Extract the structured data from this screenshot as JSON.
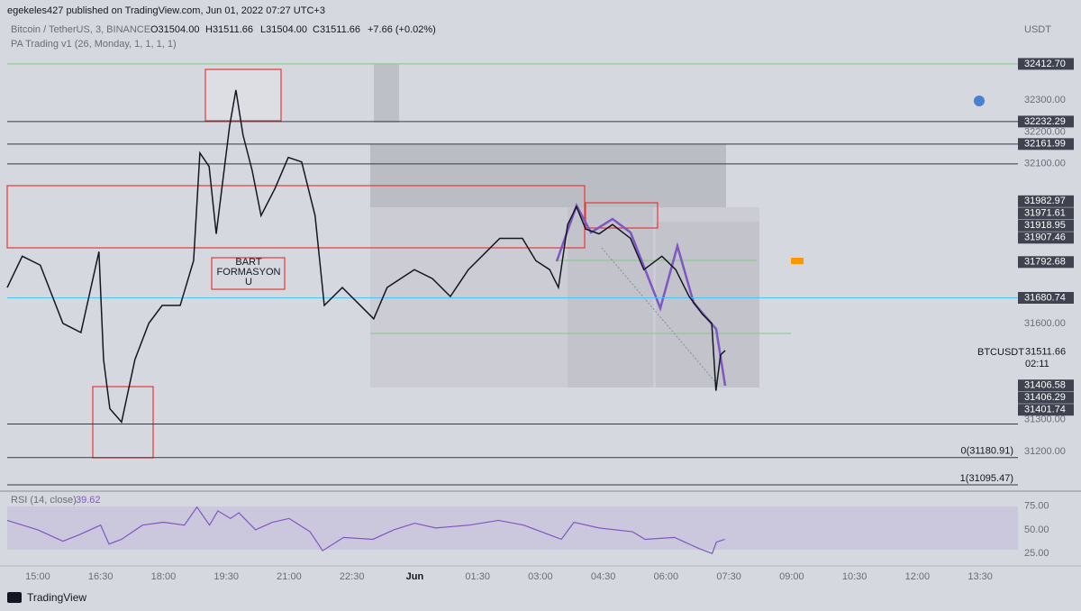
{
  "header": {
    "publisher": "egekeles427 published on TradingView.com, Jun 01, 2022 07:27 UTC+3"
  },
  "chart_data": {
    "type": "line",
    "symbol": "Bitcoin / TetherUS, 3, BINANCE",
    "ohlc": [
      "O31504.00",
      "H31511.66",
      "L31504.00",
      "C31511.66",
      "+7.66 (+0.02%)"
    ],
    "indicator": "PA Trading v1 (26, Monday, 1, 1, 1, 1)",
    "currency": "USDT",
    "x": [
      -0.73,
      -0.37,
      0.06,
      0.6,
      1.03,
      1.46,
      1.57,
      1.72,
      2.0,
      2.32,
      2.65,
      2.97,
      3.4,
      3.72,
      3.87,
      4.09,
      4.26,
      4.58,
      4.73,
      4.9,
      5.12,
      5.33,
      5.66,
      5.98,
      6.3,
      6.62,
      6.84,
      7.27,
      7.7,
      8.02,
      8.34,
      8.99,
      9.42,
      9.85,
      10.28,
      10.71,
      11.03,
      11.57,
      11.89,
      12.22,
      12.43,
      12.65,
      12.86,
      13.08,
      13.4,
      13.72,
      14.15,
      14.47,
      14.9,
      15.23,
      15.55,
      15.87,
      16.09,
      16.19,
      16.3,
      16.41
    ],
    "series": [
      {
        "name": "BTCUSDT",
        "color": "#131722",
        "values": [
          31713,
          31811,
          31783,
          31601,
          31572,
          31825,
          31488,
          31334,
          31292,
          31488,
          31601,
          31657,
          31657,
          31797,
          32134,
          32092,
          31881,
          32219,
          32331,
          32190,
          32078,
          31938,
          32022,
          32120,
          32106,
          31938,
          31657,
          31713,
          31657,
          31615,
          31713,
          31769,
          31741,
          31685,
          31769,
          31825,
          31867,
          31867,
          31797,
          31769,
          31713,
          31910,
          31966,
          31896,
          31881,
          31910,
          31867,
          31769,
          31811,
          31769,
          31685,
          31629,
          31601,
          31390,
          31502,
          31516
        ]
      }
    ],
    "last": {
      "value": 31511.66,
      "countdown": "02:11"
    },
    "xlim": [
      -0.73,
      23.4
    ],
    "xticks": [
      {
        "value": 0,
        "label": "15:00"
      },
      {
        "value": 1.5,
        "label": "16:30"
      },
      {
        "value": 3,
        "label": "18:00"
      },
      {
        "value": 4.5,
        "label": "19:30"
      },
      {
        "value": 6,
        "label": "21:00"
      },
      {
        "value": 7.5,
        "label": "22:30"
      },
      {
        "value": 9,
        "label": "Jun"
      },
      {
        "value": 10.5,
        "label": "01:30"
      },
      {
        "value": 12,
        "label": "03:00"
      },
      {
        "value": 13.5,
        "label": "04:30"
      },
      {
        "value": 15,
        "label": "06:00"
      },
      {
        "value": 16.5,
        "label": "07:30"
      },
      {
        "value": 18,
        "label": "09:00"
      },
      {
        "value": 19.5,
        "label": "10:30"
      },
      {
        "value": 21,
        "label": "12:00"
      },
      {
        "value": 22.5,
        "label": "13:30"
      }
    ],
    "ylim": [
      31090,
      32545
    ],
    "yticks": [
      {
        "value": 32300,
        "label": "32300.00"
      },
      {
        "value": 32200,
        "label": "32200.00"
      },
      {
        "value": 32100,
        "label": "32100.00"
      },
      {
        "value": 31600,
        "label": "31600.00"
      },
      {
        "value": 31300,
        "label": "31300.00"
      },
      {
        "value": 31200,
        "label": "31200.00"
      }
    ],
    "price_labels": [
      {
        "value": 32412.7,
        "label": "32412.70",
        "line_color": "#81c784"
      },
      {
        "value": 32232.29,
        "label": "32232.29",
        "line_color": "#363a45"
      },
      {
        "value": 32161.99,
        "label": "32161.99",
        "line_color": "#363a45"
      },
      {
        "value": 31982.97,
        "label": "31982.97"
      },
      {
        "value": 31971.61,
        "label": "31971.61"
      },
      {
        "value": 31918.95,
        "label": "31918.95"
      },
      {
        "value": 31907.46,
        "label": "31907.46"
      },
      {
        "value": 31792.68,
        "label": "31792.68"
      },
      {
        "value": 31680.74,
        "label": "31680.74",
        "line_color": "#4fc3f7"
      },
      {
        "value": 31406.58,
        "label": "31406.58"
      },
      {
        "value": 31406.29,
        "label": "31406.29"
      },
      {
        "value": 31401.74,
        "label": "31401.74"
      }
    ],
    "fib_levels": [
      {
        "value": 31180.91,
        "label": "0(31180.91)"
      },
      {
        "value": 31095.47,
        "label": "1(31095.47)"
      }
    ],
    "annotation": "BART FORMASYON U",
    "rsi": {
      "title": "RSI (14, close)",
      "value": 39.62,
      "color": "#7e57c2",
      "x": [
        -0.73,
        0,
        0.6,
        1.0,
        1.5,
        1.7,
        2.0,
        2.5,
        3.0,
        3.5,
        3.8,
        4.1,
        4.3,
        4.6,
        4.8,
        5.2,
        5.6,
        6.0,
        6.5,
        6.8,
        7.3,
        8.0,
        8.5,
        9.0,
        9.5,
        10.3,
        11.0,
        11.6,
        12.2,
        12.5,
        12.8,
        13.4,
        14.2,
        14.5,
        15.2,
        15.8,
        16.1,
        16.2,
        16.4
      ],
      "values": [
        60,
        50,
        38,
        45,
        55,
        35,
        40,
        55,
        58,
        55,
        74,
        55,
        70,
        62,
        68,
        50,
        58,
        62,
        48,
        28,
        42,
        40,
        50,
        57,
        52,
        55,
        60,
        55,
        45,
        40,
        58,
        52,
        48,
        40,
        42,
        30,
        25,
        37,
        40
      ],
      "ylim": [
        10,
        88
      ],
      "yticks": [
        {
          "value": 75,
          "label": "75.00"
        },
        {
          "value": 50,
          "label": "50.00"
        },
        {
          "value": 25,
          "label": "25.00"
        }
      ]
    }
  },
  "footer": {
    "brand": "TradingView"
  }
}
